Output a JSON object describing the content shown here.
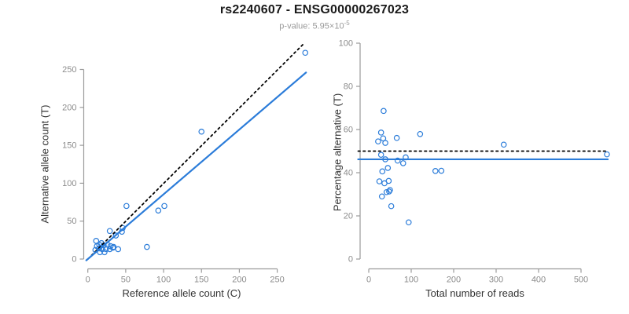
{
  "header": {
    "title": "rs2240607 - ENSG00000267023",
    "pvalue_base": "p-value: 5.95×10",
    "pvalue_exp": "-5"
  },
  "colors": {
    "point": "#2B7CD9",
    "fit_line": "#2B7CD9",
    "reference_line": "#000000",
    "axis": "#9b9b9b",
    "tick_label": "#8c8c8c",
    "axis_title": "#333333",
    "title": "#1a1a1a",
    "subtitle": "#9a9a9a"
  },
  "chart_data": [
    {
      "type": "scatter",
      "xlabel": "Reference allele count (C)",
      "ylabel": "Alternative allele count (T)",
      "xticks": [
        0,
        50,
        100,
        150,
        200,
        250
      ],
      "yticks": [
        0,
        50,
        100,
        150,
        200,
        250
      ],
      "xlim": [
        -12,
        300
      ],
      "ylim": [
        -12,
        300
      ],
      "points": [
        [
          10,
          12
        ],
        [
          11,
          24
        ],
        [
          12,
          17
        ],
        [
          15,
          19
        ],
        [
          15,
          14
        ],
        [
          16,
          9
        ],
        [
          18,
          21
        ],
        [
          19,
          13
        ],
        [
          21,
          18
        ],
        [
          22,
          9
        ],
        [
          24,
          13
        ],
        [
          26,
          19
        ],
        [
          29,
          13
        ],
        [
          30,
          17
        ],
        [
          33,
          15
        ],
        [
          34,
          16
        ],
        [
          40,
          13
        ],
        [
          29,
          37
        ],
        [
          37,
          31
        ],
        [
          45,
          36
        ],
        [
          46,
          41
        ],
        [
          51,
          70
        ],
        [
          78,
          16
        ],
        [
          93,
          64
        ],
        [
          101,
          70
        ],
        [
          150,
          168
        ],
        [
          287,
          272
        ]
      ],
      "lines": [
        {
          "name": "identity",
          "style": "dotted",
          "x1": 5,
          "y1": 5,
          "x2": 286,
          "y2": 285
        },
        {
          "name": "fit",
          "style": "solid",
          "x1": -2,
          "y1": -1.7,
          "x2": 288,
          "y2": 246
        }
      ]
    },
    {
      "type": "scatter",
      "xlabel": "Total number of reads",
      "ylabel": "Percentage alternative (T)",
      "xticks": [
        0,
        100,
        200,
        300,
        400,
        500
      ],
      "yticks": [
        0,
        20,
        40,
        60,
        80,
        100
      ],
      "xlim": [
        -25,
        580
      ],
      "ylim": [
        0,
        100
      ],
      "points": [
        [
          22,
          54.5
        ],
        [
          35,
          68.6
        ],
        [
          29,
          58.6
        ],
        [
          34,
          55.9
        ],
        [
          29,
          48.3
        ],
        [
          25,
          36.0
        ],
        [
          39,
          53.8
        ],
        [
          32,
          40.6
        ],
        [
          39,
          46.2
        ],
        [
          31,
          29.0
        ],
        [
          37,
          35.1
        ],
        [
          45,
          42.2
        ],
        [
          42,
          31.0
        ],
        [
          47,
          36.2
        ],
        [
          48,
          31.3
        ],
        [
          50,
          32.0
        ],
        [
          53,
          24.5
        ],
        [
          66,
          56.1
        ],
        [
          68,
          45.6
        ],
        [
          81,
          44.4
        ],
        [
          87,
          47.1
        ],
        [
          121,
          57.9
        ],
        [
          94,
          17.0
        ],
        [
          157,
          40.8
        ],
        [
          171,
          40.9
        ],
        [
          318,
          53.0
        ],
        [
          561,
          48.5
        ]
      ],
      "lines": [
        {
          "name": "expected",
          "style": "dotted",
          "x1": -25,
          "y1": 50.0,
          "x2": 562,
          "y2": 50.0
        },
        {
          "name": "mean",
          "style": "solid",
          "x1": -25,
          "y1": 46.2,
          "x2": 563,
          "y2": 46.2
        }
      ]
    }
  ]
}
